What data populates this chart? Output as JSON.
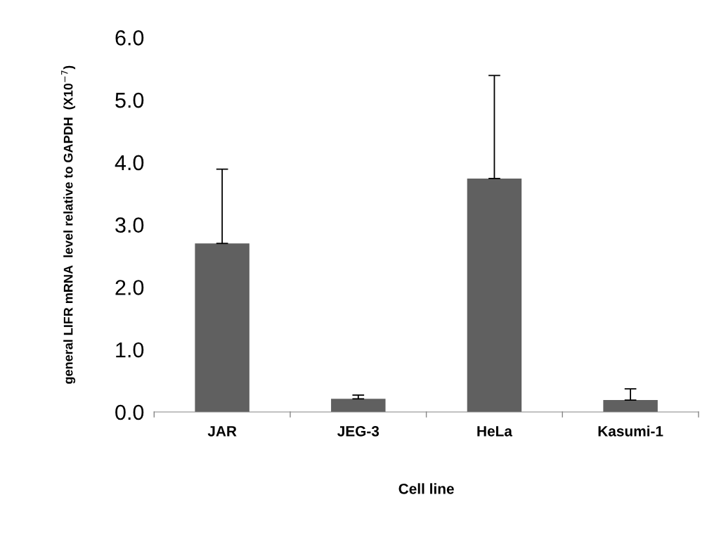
{
  "chart_data": {
    "type": "bar",
    "xlabel": "Cell line",
    "ylabel": "general LIFR mRNA  level relative to GAPDH  (X10$^{−7}$)",
    "categories": [
      "JAR",
      "JEG-3",
      "HeLa",
      "Kasumi-1"
    ],
    "values": [
      2.7,
      0.21,
      3.74,
      0.19
    ],
    "errors": [
      [
        2.7,
        3.89
      ],
      [
        0.21,
        0.27
      ],
      [
        3.74,
        5.39
      ],
      [
        0.19,
        0.37
      ]
    ],
    "color": "#606060",
    "ylim": [
      0,
      6
    ],
    "yticks": [
      {
        "value": 0,
        "label": "0.0"
      },
      {
        "value": 1,
        "label": "1.0"
      },
      {
        "value": 2,
        "label": "2.0"
      },
      {
        "value": 3,
        "label": "3.0"
      },
      {
        "value": 4,
        "label": "4.0"
      },
      {
        "value": 5,
        "label": "5.0"
      },
      {
        "value": 6,
        "label": "6.0"
      }
    ],
    "grid": false
  }
}
